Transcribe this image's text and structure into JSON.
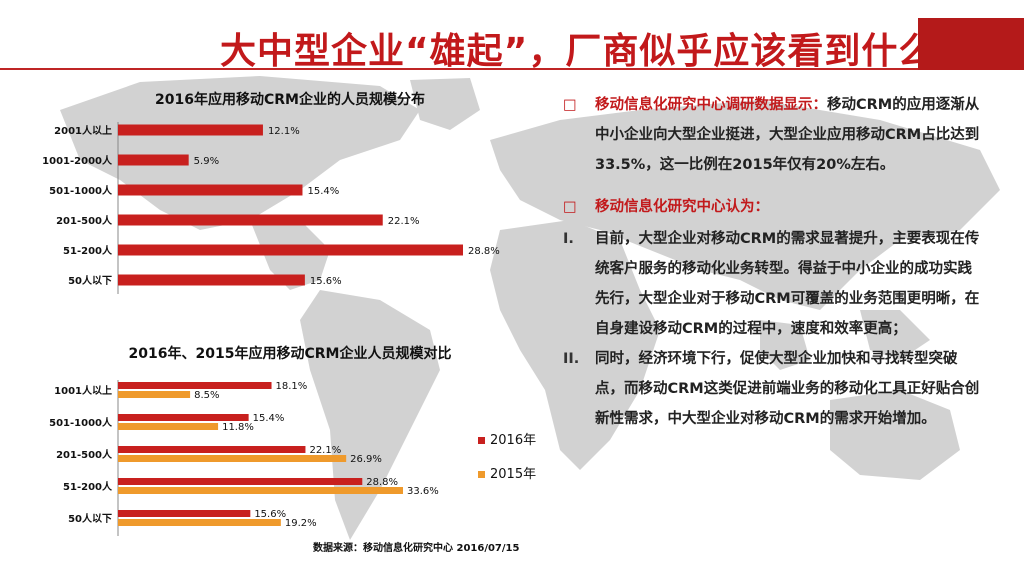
{
  "title": "大中型企业“雄起”，厂商似乎应该看到什么",
  "colors": {
    "accent": "#c2191b",
    "series_2016": "#c8201e",
    "series_2015": "#ef9a2c",
    "map": "#d2d2d2"
  },
  "chart_data": [
    {
      "type": "bar",
      "orientation": "horizontal",
      "title": "2016年应用移动CRM企业的人员规模分布",
      "categories": [
        "2001人以上",
        "1001-2000人",
        "501-1000人",
        "201-500人",
        "51-200人",
        "50人以下"
      ],
      "values": [
        12.1,
        5.9,
        15.4,
        22.1,
        28.8,
        15.6
      ],
      "value_labels": [
        "12.1%",
        "5.9%",
        "15.4%",
        "22.1%",
        "28.8%",
        "15.6%"
      ],
      "unit": "%",
      "grid": false
    },
    {
      "type": "bar",
      "orientation": "horizontal",
      "title": "2016年、2015年应用移动CRM企业人员规模对比",
      "categories": [
        "1001人以上",
        "501-1000人",
        "201-500人",
        "51-200人",
        "50人以下"
      ],
      "series": [
        {
          "name": "2016年",
          "values": [
            18.1,
            15.4,
            22.1,
            28.8,
            15.6
          ],
          "labels": [
            "18.1%",
            "15.4%",
            "22.1%",
            "28.8%",
            "15.6%"
          ]
        },
        {
          "name": "2015年",
          "values": [
            8.5,
            11.8,
            26.9,
            33.6,
            19.2
          ],
          "labels": [
            "8.5%",
            "11.8%",
            "26.9%",
            "33.6%",
            "19.2%"
          ]
        }
      ],
      "unit": "%",
      "legend_position": "right",
      "grid": false
    }
  ],
  "source": "数据来源：移动信息化研究中心 2016/07/15",
  "findings": {
    "p1_marker": "□",
    "p1_lead": "移动信息化研究中心调研数据显示：",
    "p1_text": "移动CRM的应用逐渐从中小企业向大型企业挺进，大型企业应用移动CRM占比达到33.5%，这一比例在2015年仅有20%左右。",
    "p2_marker": "□",
    "p2_lead": "移动信息化研究中心认为：",
    "items": [
      {
        "num": "I.",
        "text": "目前，大型企业对移动CRM的需求显著提升，主要表现在传统客户服务的移动化业务转型。得益于中小企业的成功实践先行，大型企业对于移动CRM可覆盖的业务范围更明晰，在自身建设移动CRM的过程中，速度和效率更高；"
      },
      {
        "num": "II.",
        "text": "同时，经济环境下行，促使大型企业加快和寻找转型突破点，而移动CRM这类促进前端业务的移动化工具正好贴合创新性需求，中大型企业对移动CRM的需求开始增加。"
      }
    ]
  }
}
